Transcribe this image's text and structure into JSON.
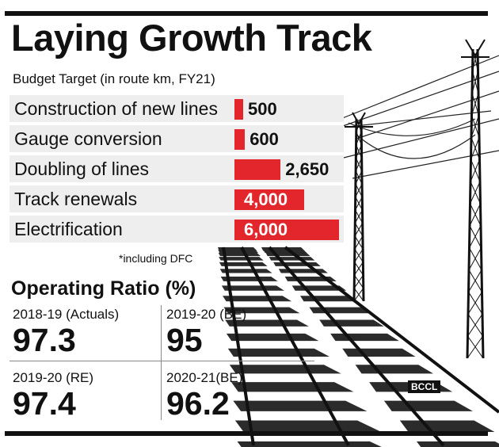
{
  "header": {
    "title": "Laying Growth Track",
    "subtitle": "Budget Target (in route km, FY21)"
  },
  "chart_data": {
    "type": "bar",
    "orientation": "horizontal",
    "categories": [
      "Construction of new lines",
      "Gauge conversion",
      "Doubling of lines",
      "Track renewals",
      "Electrification"
    ],
    "values": [
      500,
      600,
      2650,
      4000,
      6000
    ],
    "value_labels": [
      "500",
      "600",
      "2,650",
      "4,000",
      "6,000"
    ],
    "bar_color": "#e3252c",
    "xlim": [
      0,
      6000
    ],
    "grid": false,
    "footnote": "*including DFC"
  },
  "operating_ratio": {
    "title": "Operating Ratio (%)",
    "items": [
      {
        "label": "2018-19 (Actuals)",
        "value": "97.3"
      },
      {
        "label": "2019-20 (BE)",
        "value": "95"
      },
      {
        "label": "2019-20 (RE)",
        "value": "97.4"
      },
      {
        "label": "2020-21(BE)",
        "value": "96.2"
      }
    ]
  },
  "watermark": "BCCL",
  "colors": {
    "accent": "#e3252c",
    "text": "#111111"
  }
}
